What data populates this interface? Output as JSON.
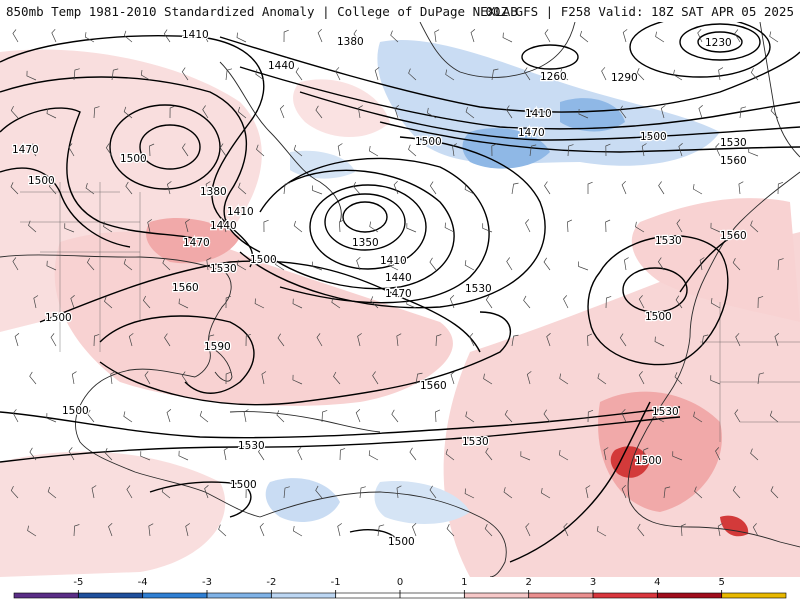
{
  "header": {
    "left_title": "850mb Temp 1981-2010 Standardized Anomaly | College of DuPage NEXLAB",
    "right_title": "00Z GFS | F258 Valid: 18Z SAT APR 05 2025"
  },
  "colorbar": {
    "ticks": [
      "-5",
      "-4",
      "-3",
      "-2",
      "-1",
      "0",
      "1",
      "2",
      "3",
      "4",
      "5"
    ],
    "colors": [
      "#5a2d86",
      "#1f4f9c",
      "#2f7fd3",
      "#7fb2e6",
      "#bcd6f2",
      "#ffffff",
      "#ffffff",
      "#f6c8c8",
      "#ea8f8f",
      "#d9363e",
      "#a00d1c",
      "#e8b800"
    ]
  },
  "map": {
    "colors": {
      "contour": "#000000",
      "coast": "#2b2b2b",
      "warm_light": "#f7d4d4",
      "warm_med": "#efa3a3",
      "warm_strong": "#d33a3a",
      "cold_light": "#c9dcf3",
      "cold_med": "#8fb8e6",
      "barb": "#444444"
    },
    "contour_labels": [
      "1410",
      "1380",
      "1440",
      "1470",
      "1500",
      "1380",
      "1410",
      "1440",
      "1470",
      "1500",
      "1530",
      "1560",
      "1590",
      "1500",
      "1350",
      "1410",
      "1440",
      "1470",
      "1530",
      "1500",
      "1560",
      "1530",
      "1500",
      "1530",
      "1560",
      "1530",
      "1500",
      "1500",
      "1500",
      "1530",
      "1500",
      "1260",
      "1290",
      "1230",
      "1410",
      "1470",
      "1500",
      "1530",
      "1560",
      "1500"
    ],
    "highs_lows": [
      "1350",
      "1500",
      "1230",
      "1260"
    ]
  }
}
